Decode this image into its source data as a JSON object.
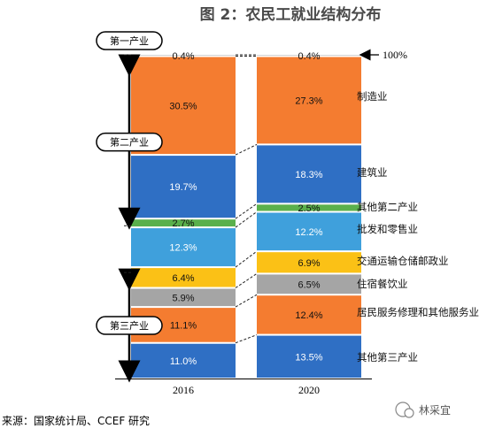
{
  "chart_data": {
    "type": "bar",
    "stacked": true,
    "title": "图 2：农民工就业结构分布",
    "categories": [
      "2016",
      "2020"
    ],
    "top_marker": "100%",
    "series": [
      {
        "name": "其他第三产业",
        "color": "#2f6fc4",
        "values": [
          11.0,
          13.5
        ],
        "labels": [
          "11.0%",
          "13.5%"
        ]
      },
      {
        "name": "居民服务修理和其他服务业",
        "color": "#f47c30",
        "values": [
          11.1,
          12.4
        ],
        "labels": [
          "11.1%",
          "12.4%"
        ]
      },
      {
        "name": "住宿餐饮业",
        "color": "#a5a5a5",
        "values": [
          5.9,
          6.5
        ],
        "labels": [
          "5.9%",
          "6.5%"
        ]
      },
      {
        "name": "交通运输仓储邮政业",
        "color": "#fbc116",
        "values": [
          6.4,
          6.9
        ],
        "labels": [
          "6.4%",
          "6.9%"
        ]
      },
      {
        "name": "批发和零售业",
        "color": "#3fa0dc",
        "values": [
          12.3,
          12.2
        ],
        "labels": [
          "12.3%",
          "12.2%"
        ]
      },
      {
        "name": "其他第二产业",
        "color": "#5ab04c",
        "values": [
          2.7,
          2.5
        ],
        "labels": [
          "2.7%",
          "2.5%"
        ]
      },
      {
        "name": "建筑业",
        "color": "#2f6fc4",
        "values": [
          19.7,
          18.3
        ],
        "labels": [
          "19.7%",
          "18.3%"
        ]
      },
      {
        "name": "制造业",
        "color": "#f47c30",
        "values": [
          30.5,
          27.3
        ],
        "labels": [
          "30.5%",
          "27.3%"
        ]
      },
      {
        "name": "",
        "color": "#a5a5a5",
        "values": [
          0.4,
          0.4
        ],
        "labels": [
          "0.4%",
          "0.4%"
        ]
      }
    ],
    "groups": [
      {
        "name": "第一产业",
        "series_from": 8,
        "series_to": 8
      },
      {
        "name": "第二产业",
        "series_from": 5,
        "series_to": 7
      },
      {
        "name": "第三产业",
        "series_from": 0,
        "series_to": 4
      }
    ],
    "source": "来源：国家统计局、CCEF 研究",
    "watermark": "林采宜"
  }
}
